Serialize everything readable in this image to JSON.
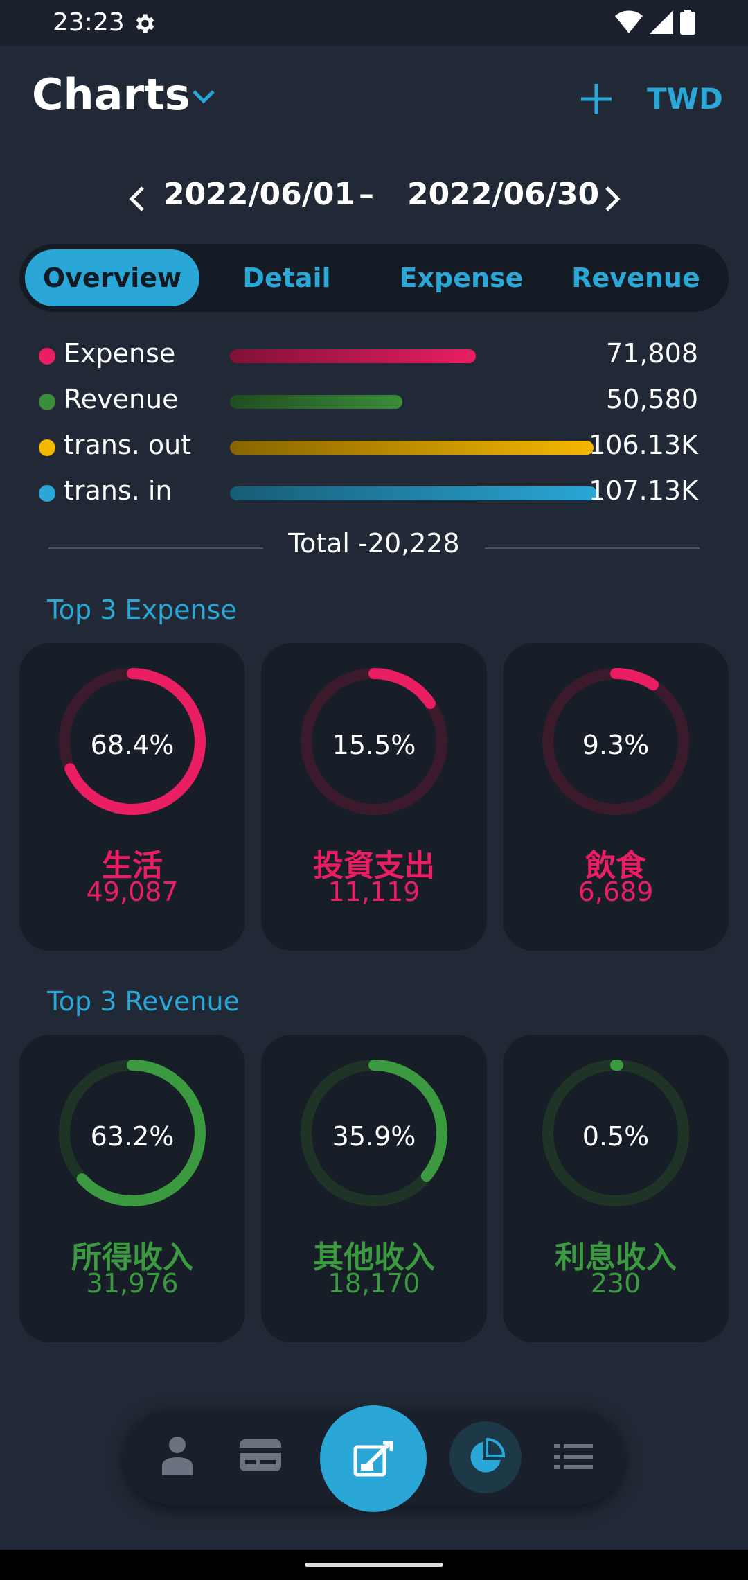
{
  "status_bar": {
    "time": "23:23"
  },
  "app_bar": {
    "title": "Charts",
    "currency": "TWD"
  },
  "date_range": {
    "start": "2022/06/01",
    "separator": "–",
    "end": "2022/06/30"
  },
  "tabs": [
    {
      "label": "Overview",
      "active": true
    },
    {
      "label": "Detail",
      "active": false
    },
    {
      "label": "Expense",
      "active": false
    },
    {
      "label": "Revenue",
      "active": false
    }
  ],
  "summary": [
    {
      "label": "Expense",
      "value": "71,808",
      "color": "#e91e63",
      "bar_fraction": 0.67
    },
    {
      "label": "Revenue",
      "value": "50,580",
      "color": "#3b8c3b",
      "bar_fraction": 0.47
    },
    {
      "label": "trans. out",
      "value": "106.13K",
      "color": "#f5b800",
      "bar_fraction": 0.99
    },
    {
      "label": "trans. in",
      "value": "107.13K",
      "color": "#2aa7d6",
      "bar_fraction": 1.0
    }
  ],
  "total": {
    "text": "Total -20,228"
  },
  "top_expense": {
    "title": "Top 3 Expense",
    "items": [
      {
        "percent": "68.4%",
        "fraction": 0.684,
        "name": "生活",
        "amount": "49,087"
      },
      {
        "percent": "15.5%",
        "fraction": 0.155,
        "name": "投資支出",
        "amount": "11,119"
      },
      {
        "percent": "9.3%",
        "fraction": 0.093,
        "name": "飲食",
        "amount": "6,689"
      }
    ]
  },
  "top_revenue": {
    "title": "Top 3 Revenue",
    "items": [
      {
        "percent": "63.2%",
        "fraction": 0.632,
        "name": "所得收入",
        "amount": "31,976"
      },
      {
        "percent": "35.9%",
        "fraction": 0.359,
        "name": "其他收入",
        "amount": "18,170"
      },
      {
        "percent": "0.5%",
        "fraction": 0.005,
        "name": "利息收入",
        "amount": "230"
      }
    ]
  },
  "colors": {
    "accent": "#2aa7d6",
    "expense": "#e91e63",
    "expense_track": "#3b1a2c",
    "revenue": "#3b9a3f",
    "revenue_track": "#1f3326",
    "background": "#212936"
  },
  "bottom_nav": [
    "person-icon",
    "card-icon",
    "add-record-icon",
    "pie-chart-icon",
    "list-icon"
  ]
}
